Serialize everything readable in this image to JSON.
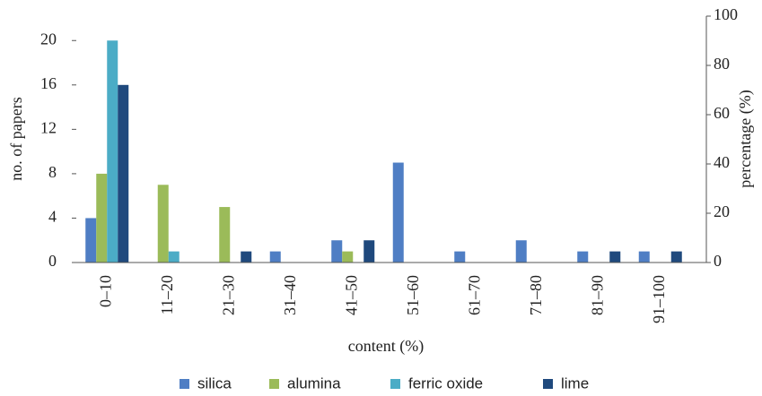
{
  "chart_data": {
    "type": "bar",
    "x_label": "content (%)",
    "y_label": "no. of papers",
    "y2_label": "percentage (%)",
    "categories": [
      "0–10",
      "11–20",
      "21–30",
      "31–40",
      "41–50",
      "51–60",
      "61–70",
      "71–80",
      "81–90",
      "91–100"
    ],
    "series": [
      {
        "name": "silica",
        "color": "#4f7ec4",
        "values": [
          4,
          0,
          0,
          1,
          2,
          9,
          1,
          2,
          1,
          1
        ]
      },
      {
        "name": "alumina",
        "color": "#9bbb59",
        "values": [
          8,
          7,
          5,
          0,
          1,
          0,
          0,
          0,
          0,
          0
        ]
      },
      {
        "name": "ferric oxide",
        "color": "#4bacc6",
        "values": [
          20,
          1,
          0,
          0,
          0,
          0,
          0,
          0,
          0,
          0
        ]
      },
      {
        "name": "lime",
        "color": "#1f497d",
        "values": [
          16,
          0,
          1,
          0,
          2,
          0,
          0,
          0,
          1,
          1
        ]
      }
    ],
    "ylim": [
      0,
      22.2
    ],
    "yticks": [
      0,
      4,
      8,
      12,
      16,
      20
    ],
    "y2lim": [
      0,
      100
    ],
    "y2ticks": [
      0,
      20,
      40,
      60,
      80,
      100
    ],
    "legend": "bottom"
  }
}
